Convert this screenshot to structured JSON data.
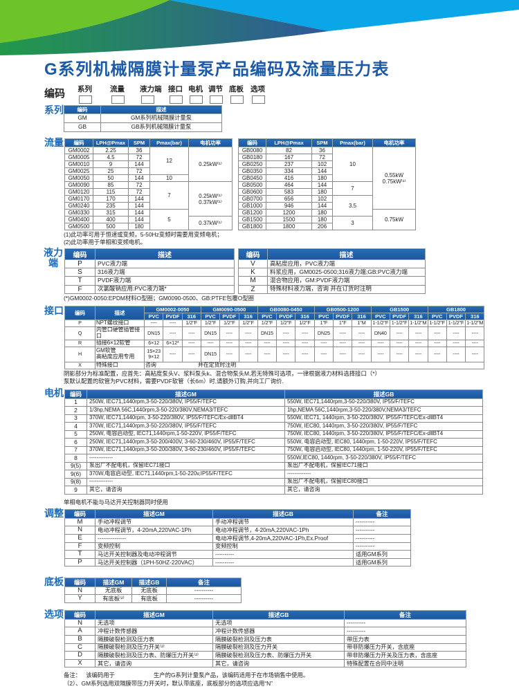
{
  "colors": {
    "header_blue": "#1b56a0",
    "title_blue": "#1a5aa8",
    "section_blue": "#1b6cc0",
    "banner_green": "#6cc32a",
    "banner_blue": "#0aa6e8"
  },
  "title": "G系列机械隔膜计量泵产品编码及流量压力表",
  "code_row": {
    "label": "编码",
    "fields": [
      "系列",
      "流量",
      "液力端",
      "接口",
      "电机",
      "调节",
      "底板",
      "选项"
    ]
  },
  "series": {
    "label": "系列",
    "headers": [
      "编码",
      "描述"
    ],
    "rows": [
      [
        "GM",
        "GM系列机械隔膜计量泵"
      ],
      [
        "GB",
        "GB系列机械隔膜计量泵"
      ]
    ]
  },
  "flow": {
    "label": "流量",
    "headers": [
      "编码",
      "LPH@Pmax",
      "SPM",
      "Pmax(bar)",
      "电机功率"
    ],
    "gm_rows": [
      [
        "GM0002",
        "2.25",
        "36",
        "12",
        "0.25kW⁽¹⁾"
      ],
      [
        "GM0005",
        "4.5",
        "72",
        "12",
        "0.25kW⁽¹⁾"
      ],
      [
        "GM0010",
        "9",
        "144",
        "12",
        "0.25kW⁽¹⁾"
      ],
      [
        "GM0025",
        "25",
        "72",
        "12",
        "0.25kW⁽¹⁾"
      ],
      [
        "GM0050",
        "50",
        "144",
        "10",
        "0.25kW⁽¹⁾"
      ],
      [
        "GM0090",
        "85",
        "72",
        "7",
        "0.25kW⁽¹⁾\n0.37kW⁽¹⁾"
      ],
      [
        "GM0120",
        "115",
        "72",
        "7",
        "0.25kW⁽¹⁾\n0.37kW⁽¹⁾"
      ],
      [
        "GM0170",
        "170",
        "144",
        "7",
        "0.25kW⁽¹⁾\n0.37kW⁽¹⁾"
      ],
      [
        "GM0240",
        "235",
        "144",
        "7",
        "0.25kW⁽¹⁾\n0.37kW⁽¹⁾"
      ],
      [
        "GM0330",
        "315",
        "144",
        "5",
        "0.25kW⁽¹⁾\n0.37kW⁽¹⁾"
      ],
      [
        "GM0400",
        "400",
        "144",
        "5",
        "0.37kW⁽¹⁾"
      ],
      [
        "GM0500",
        "500",
        "180",
        "5",
        "0.37kW⁽¹⁾"
      ]
    ],
    "gb_rows": [
      [
        "GB0080",
        "82",
        "36",
        "10",
        "0.55kW\n0.75kW⁽¹⁾"
      ],
      [
        "GB0180",
        "167",
        "72",
        "10",
        "0.55kW\n0.75kW⁽¹⁾"
      ],
      [
        "GB0250",
        "237",
        "102",
        "10",
        "0.55kW\n0.75kW⁽¹⁾"
      ],
      [
        "GB0350",
        "334",
        "144",
        "10",
        "0.55kW\n0.75kW⁽¹⁾"
      ],
      [
        "GB0450",
        "416",
        "180",
        "10",
        "0.55kW\n0.75kW⁽¹⁾"
      ],
      [
        "GB0500",
        "464",
        "144",
        "7",
        "0.55kW\n0.75kW⁽¹⁾"
      ],
      [
        "GB0600",
        "583",
        "180",
        "7",
        "0.55kW\n0.75kW⁽¹⁾"
      ],
      [
        "GB0700",
        "656",
        "102",
        "3.5",
        "0.55kW\n0.75kW⁽¹⁾"
      ],
      [
        "GB1000",
        "946",
        "144",
        "3.5",
        "0.55kW\n0.75kW⁽¹⁾"
      ],
      [
        "GB1200",
        "1200",
        "180",
        "3.5",
        "0.75kW"
      ],
      [
        "GB1500",
        "1500",
        "180",
        "3",
        "0.75kW"
      ],
      [
        "GB1800",
        "1800",
        "206",
        "3",
        "0.75kW"
      ]
    ],
    "notes": [
      "(1)此功率可用于恒速或变频，5-50Hz变频时需要用变频电机；",
      "(2)此功率用于单相和变频电机。"
    ]
  },
  "wet_end": {
    "label": "液力\n端",
    "headers": [
      "编码",
      "描述"
    ],
    "left_rows": [
      [
        "P",
        "PVC液力端"
      ],
      [
        "S",
        "316液力端"
      ],
      [
        "T",
        "PVDF液力端"
      ],
      [
        "F",
        "次氯酸钠应用:PVC液力端*"
      ]
    ],
    "right_rows": [
      [
        "V",
        "高粘度应用，PVC液力端"
      ],
      [
        "K",
        "料浆应用，GM0025-0500;316液力端;GB:PVC液力端"
      ],
      [
        "M",
        "混合物应用，GM:PVDF液力端"
      ],
      [
        "Z",
        "特殊材料液力端，咨询              并在订货时注明"
      ]
    ],
    "note": "(*)GM0002-0050:EPDM材料O型圈；GM0090-0500、GB:PTFE包覆O型圈"
  },
  "connection": {
    "label": "接口",
    "headers": [
      "编码",
      "描述"
    ],
    "groups": [
      "GM0002-0050",
      "GM0090-0500",
      "GB0080-0450",
      "GB0500-1200",
      "GB1500",
      "GB1800"
    ],
    "subcols": [
      "PVC",
      "PVDF",
      "316"
    ],
    "rows": [
      {
        "code": "P",
        "desc": "NPT螺纹接口",
        "values": [
          "----",
          "----",
          "1/2\"F",
          "1/2\"F",
          "1/2\"F",
          "1/2\"F",
          "1/2\"F",
          "1/2\"F",
          "1/2\"F",
          "1\"F",
          "1\"F",
          "1\"M",
          "1-1/2\"F",
          "1-1/2\"F",
          "1-1/2\"M",
          "1-1/2\"F",
          "1-1/2\"F",
          "1-1/2\"M"
        ]
      },
      {
        "code": "Q",
        "desc": "内管口硬管插管接口",
        "values": [
          "DN15",
          "----",
          "----",
          "DN15",
          "----",
          "----",
          "DN15",
          "----",
          "----",
          "DN25",
          "----",
          "----",
          "DN40",
          "----",
          "----",
          "----",
          "----",
          "----"
        ]
      },
      {
        "code": "R",
        "desc": "插接6×12软管",
        "values": [
          "6×12",
          "6×12*",
          "----",
          "----",
          "----",
          "----",
          "----",
          "----",
          "----",
          "----",
          "----",
          "----",
          "----",
          "----",
          "----",
          "----",
          "----",
          "----"
        ]
      },
      {
        "code": "H",
        "desc": "GM软管\n高粘度应用专用",
        "values": [
          "15×23\n9×12",
          "----",
          "----",
          "DN15",
          "----",
          "----",
          "----",
          "----",
          "----",
          "----",
          "----",
          "----",
          "----",
          "----",
          "----",
          "----",
          "----",
          "----"
        ]
      }
    ],
    "special": {
      "code": "X",
      "desc": "特殊接口",
      "consult": "咨询",
      "remark": "并在定货时注明"
    },
    "notes": [
      "阴影部分为标准配置，应首先：高粘度泵头V、浆料泵头k、混合物泵头M,若无特殊可选项，一律根据液力材料选择接口（*）",
      "泵默认配置的软管为PVC材料，需要PVDF软管（长6m）时,请额外订购,并向工厂询价."
    ]
  },
  "motor": {
    "label": "电机",
    "headers": [
      "编码",
      "描述GM",
      "描述GB"
    ],
    "rows": [
      [
        "1",
        "250W, IEC71,1440rpm,3-50-220/380V, IP55/F/TEFC",
        "550W, IEC71,1440rpm,3-50-220/380V, IP55/F/TEFC"
      ],
      [
        "2",
        "1/3hp,NEMA  56C,1440rpm,3-50-220/380V,NEMA3/TEFC",
        "1hp,NEMA  56C,1440rpm,3-50-220/380V,NEMA3/TEFC"
      ],
      [
        "3",
        "370W, IEC71,1440rpm, 3-50-220/380V, IP55/F/TEFC/Ex-dⅡBT4",
        "550W, IEC71, 1440rpm, 3-50-220/380V, IP55/F/TEFC/Ex-dⅡBT4"
      ],
      [
        "4",
        "370W, IEC71,1440rpm,3-50-220/380V, IP55/F/TEFC",
        "750W, IEC80, 1440rpm, 3-50-220/380V, IP55/F/TEFC"
      ],
      [
        "5",
        "250W, 电容启动型, IEC71,1440rpm,1-50-220V, IP55/F/TEFC",
        "750W, IEC80, 1440rpm, 3-50-220/380V, IP55/F/TEFC/Ex-dⅡBT4"
      ],
      [
        "6",
        "250W, IEC71,1440rpm,3-50-200/400V, 3-60-230/460V, IP55/F/TEFC",
        "550W, 电容启动型, IEC80, 1440rpm, 1-50-220V, IP55/F/TEFC"
      ],
      [
        "7",
        "370W, IEC71,1440rpm,3-50-200/380V, 3-60-230/460V, IP55/F/TEFC",
        "750W, 电容启动型, IEC80, 1440rpm, 1-50-220V, IP55/F/TEFC"
      ],
      [
        "8",
        "-------------",
        "550W,IEC80, 1440rpm, 3-50-220/380V, IP55/F/TEFC"
      ],
      [
        "9(5)",
        "泵出厂不配电机，保留IEC71接口",
        "泵出厂不配电机，保留IEC71接口"
      ],
      [
        "9(6)",
        "370W,电容启动型, IEC71,1440rpm,1-50-220v,IP55/F/TEFC",
        "-------------"
      ],
      [
        "9(8)",
        "-------------",
        "泵出厂不配电机，保留IEC80接口"
      ],
      [
        "9",
        "其它，请咨询",
        "其它，请咨询"
      ]
    ],
    "note": "单相电机不能与马达开关控制器同时使用"
  },
  "adjust": {
    "label": "调整",
    "headers": [
      "编码",
      "描述GM",
      "描述GB",
      "备注"
    ],
    "rows": [
      [
        "M",
        "手动冲程调节",
        "手动冲程调节",
        "----------"
      ],
      [
        "N",
        "电动冲程调节，4-20mA,220VAC-1Ph",
        "电动冲程调节，4-20mA,220VAC-1Ph",
        "----------"
      ],
      [
        "E",
        "---------------",
        "电动冲程调节,4-20mA,220VAC-1Ph,Ex.Proof",
        "----------"
      ],
      [
        "F",
        "变频控制",
        "变频控制",
        "----------"
      ],
      [
        "T",
        "马达开关控制器及电动冲程调节",
        "----------",
        "适用GM系列"
      ],
      [
        "P",
        "马达开关控制器（1PH-50HZ-220VAC）",
        "----------",
        "适用GM系列"
      ]
    ]
  },
  "base": {
    "label": "底板",
    "headers": [
      "编码",
      "描述GM",
      "描述GB",
      "备注"
    ],
    "rows": [
      [
        "N",
        "无底板",
        "无底板",
        "----------"
      ],
      [
        "Y",
        "有底板⁽²⁾",
        "有底板",
        "----------"
      ]
    ]
  },
  "options": {
    "label": "选项",
    "headers": [
      "编码",
      "描述GM",
      "描述GB",
      "备注"
    ],
    "rows": [
      [
        "N",
        "无选项",
        "无选项",
        "----------"
      ],
      [
        "A",
        "冲程计数传感器",
        "冲程计数传感器",
        "----------"
      ],
      [
        "B",
        "隔膜破裂检测及压力表",
        "隔膜破裂检测及压力表",
        "带压力表"
      ],
      [
        "C",
        "隔膜破裂检测及压力开关⁽²⁾",
        "隔膜破裂检测及压力开关",
        "带非防爆压力开关，含底座"
      ],
      [
        "D",
        "隔膜破裂检测及压力表、防爆压力开关⁽²⁾",
        "隔膜破裂检测及压力表、防爆压力开关",
        "带非防爆压力开关及压力表，含底座"
      ],
      [
        "X",
        "其它，请咨询",
        "其它，请咨询",
        "特殊配置在合同中注明"
      ]
    ],
    "notes": [
      "备注：   该编码用于                        生产的G系列计量泵产品，该编码适用于在市场销售中使用。",
      "（2）、GM系列选用双隔膜带压力开关时，默认带底座，底板部分的选项应选用“N”"
    ]
  }
}
